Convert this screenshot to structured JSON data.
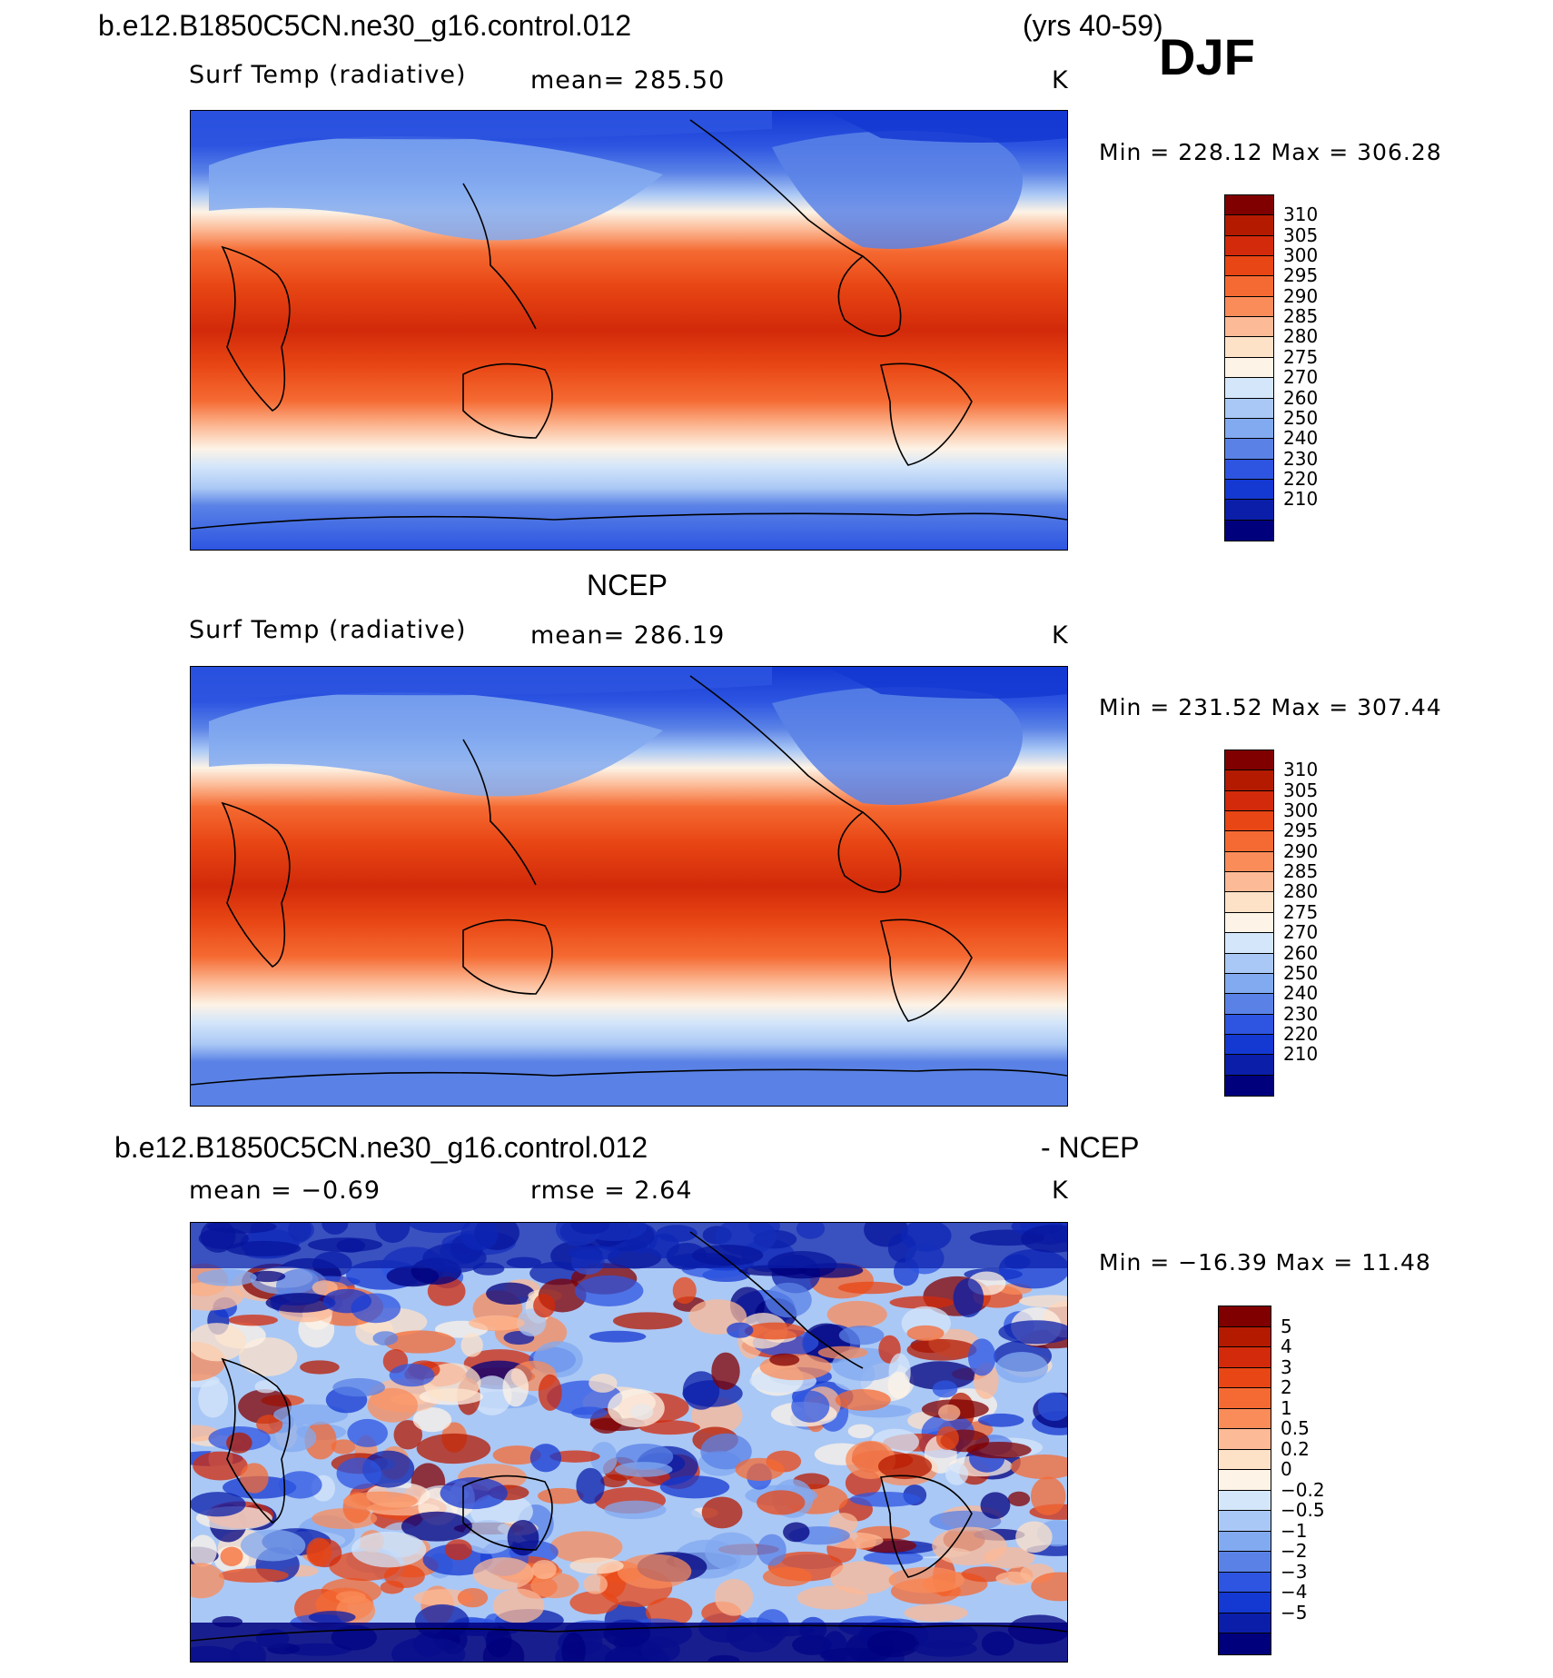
{
  "header": {
    "case_name": "b.e12.B1850C5CN.ne30_g16.control.012",
    "years": "(yrs 40-59)",
    "season": "DJF"
  },
  "panels": [
    {
      "id": "model",
      "title": "",
      "variable": "Surf Temp (radiative)",
      "stat_left": "mean=  285.50",
      "stat_mid": "",
      "units": "K",
      "minmax": "Min  =  228.12  Max  =  306.28"
    },
    {
      "id": "obs",
      "title": "NCEP",
      "variable": "Surf Temp (radiative)",
      "stat_left": "mean=  286.19",
      "stat_mid": "",
      "units": "K",
      "minmax": "Min  =  231.52  Max  =  307.44"
    },
    {
      "id": "diff",
      "title_left": "b.e12.B1850C5CN.ne30_g16.control.012",
      "title_right": "- NCEP",
      "stat_left": "mean =    −0.69",
      "stat_mid": "rmse =     2.64",
      "units": "K",
      "minmax": "Min  =  −16.39  Max  =    11.48"
    }
  ],
  "colorbars": {
    "temperature": {
      "labels": [
        "310",
        "305",
        "300",
        "295",
        "290",
        "285",
        "280",
        "275",
        "270",
        "260",
        "250",
        "240",
        "230",
        "220",
        "210"
      ],
      "colors": [
        "#800000",
        "#b41a00",
        "#d22a0a",
        "#e84614",
        "#f56a32",
        "#fa8c5a",
        "#fcba96",
        "#fde2c8",
        "#fdf3e6",
        "#d4e6fa",
        "#aac8f5",
        "#82aaf0",
        "#5a82e6",
        "#2d55e1",
        "#1438d2",
        "#0a1eaa",
        "#00007d"
      ]
    },
    "difference": {
      "labels": [
        "5",
        "4",
        "3",
        "2",
        "1",
        "0.5",
        "0.2",
        "0",
        "−0.2",
        "−0.5",
        "−1",
        "−2",
        "−3",
        "−4",
        "−5"
      ],
      "colors": [
        "#800000",
        "#b41a00",
        "#d22a0a",
        "#e84614",
        "#f56a32",
        "#fa8c5a",
        "#fcba96",
        "#fde2c8",
        "#fdf3e6",
        "#d4e6fa",
        "#aac8f5",
        "#82aaf0",
        "#5a82e6",
        "#2d55e1",
        "#1438d2",
        "#0a1eaa",
        "#00007d"
      ]
    }
  }
}
